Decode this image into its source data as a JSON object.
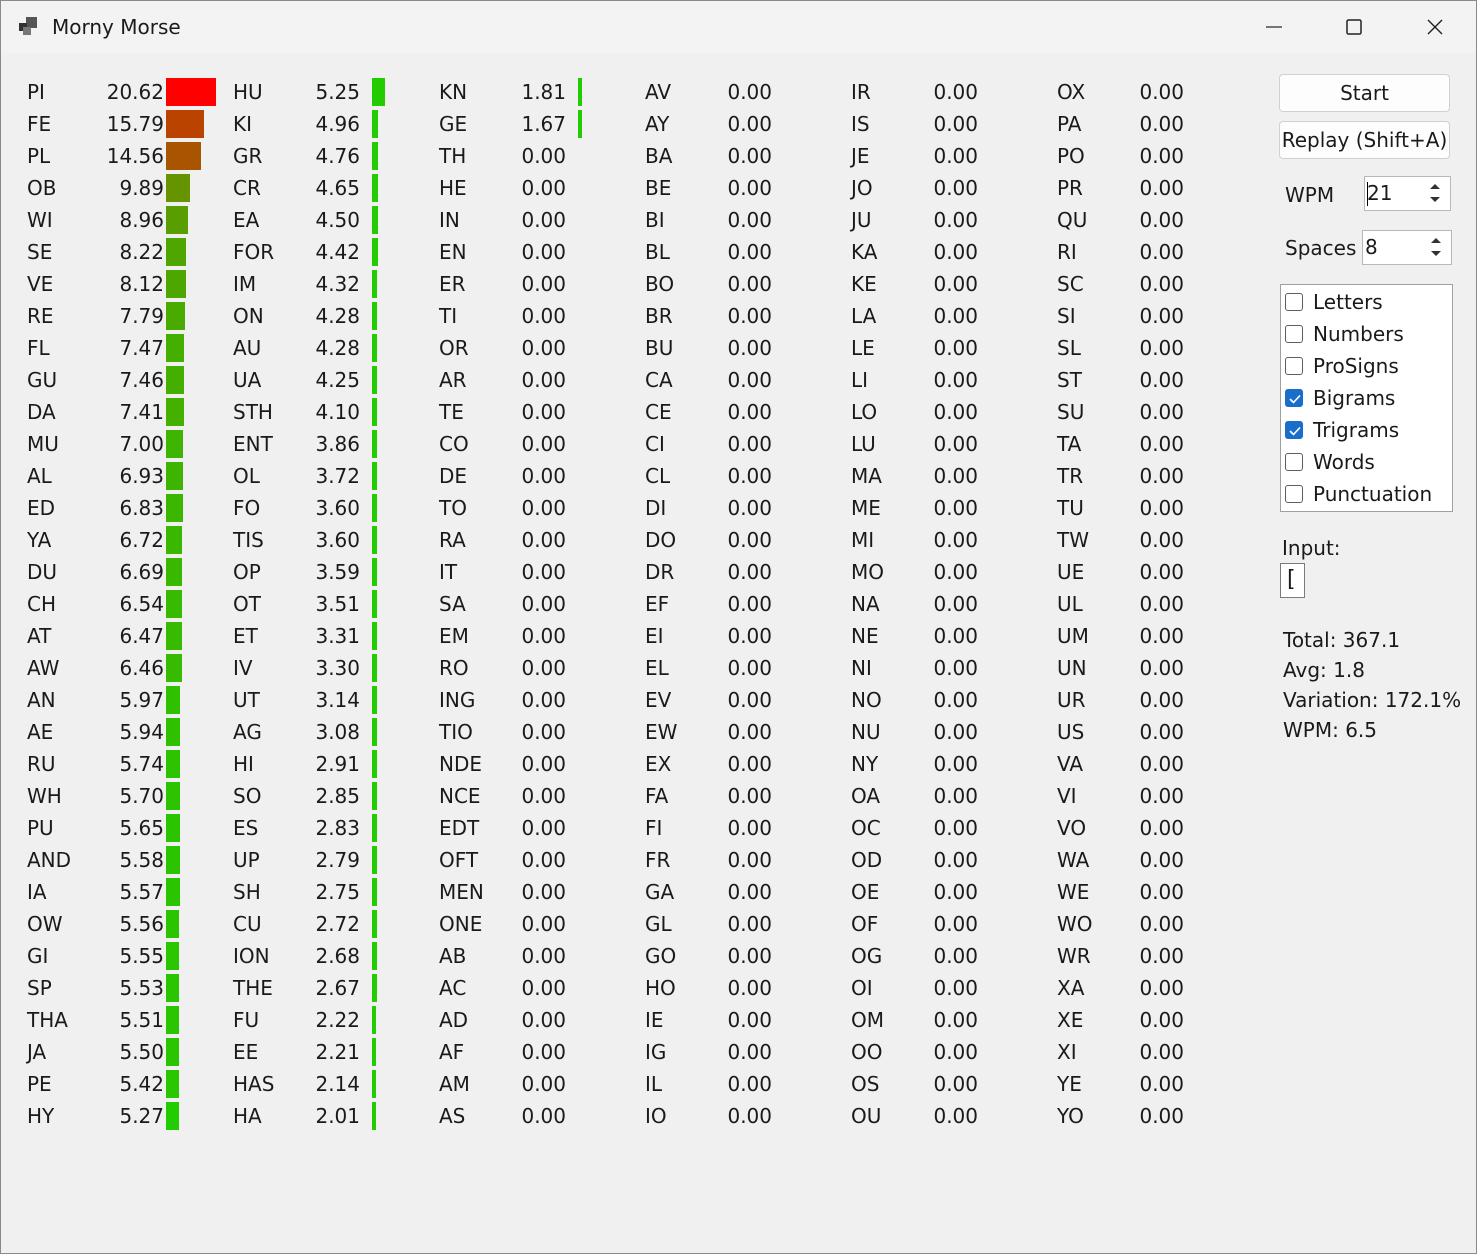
{
  "window": {
    "title": "Morny Morse"
  },
  "controls": {
    "start_label": "Start",
    "replay_label": "Replay (Shift+A)",
    "wpm_label": "WPM",
    "wpm_value": "21",
    "spaces_label": "Spaces",
    "spaces_value": "8",
    "checkboxes": [
      {
        "label": "Letters",
        "checked": false
      },
      {
        "label": "Numbers",
        "checked": false
      },
      {
        "label": "ProSigns",
        "checked": false
      },
      {
        "label": "Bigrams",
        "checked": true
      },
      {
        "label": "Trigrams",
        "checked": true
      },
      {
        "label": "Words",
        "checked": false
      },
      {
        "label": "Punctuation",
        "checked": false
      }
    ],
    "input_label": "Input:",
    "input_value": "["
  },
  "stats": {
    "total": "Total: 367.1",
    "avg": "Avg: 1.8",
    "variation": "Variation: 172.1%",
    "wpm": "WPM: 6.5"
  },
  "colors": {
    "bar_green": "#22cc00",
    "bar_red": "#ff0000"
  },
  "columns": [
    [
      [
        "PI",
        "20.62"
      ],
      [
        "FE",
        "15.79"
      ],
      [
        "PL",
        "14.56"
      ],
      [
        "OB",
        "9.89"
      ],
      [
        "WI",
        "8.96"
      ],
      [
        "SE",
        "8.22"
      ],
      [
        "VE",
        "8.12"
      ],
      [
        "RE",
        "7.79"
      ],
      [
        "FL",
        "7.47"
      ],
      [
        "GU",
        "7.46"
      ],
      [
        "DA",
        "7.41"
      ],
      [
        "MU",
        "7.00"
      ],
      [
        "AL",
        "6.93"
      ],
      [
        "ED",
        "6.83"
      ],
      [
        "YA",
        "6.72"
      ],
      [
        "DU",
        "6.69"
      ],
      [
        "CH",
        "6.54"
      ],
      [
        "AT",
        "6.47"
      ],
      [
        "AW",
        "6.46"
      ],
      [
        "AN",
        "5.97"
      ],
      [
        "AE",
        "5.94"
      ],
      [
        "RU",
        "5.74"
      ],
      [
        "WH",
        "5.70"
      ],
      [
        "PU",
        "5.65"
      ],
      [
        "AND",
        "5.58"
      ],
      [
        "IA",
        "5.57"
      ],
      [
        "OW",
        "5.56"
      ],
      [
        "GI",
        "5.55"
      ],
      [
        "SP",
        "5.53"
      ],
      [
        "THA",
        "5.51"
      ],
      [
        "JA",
        "5.50"
      ],
      [
        "PE",
        "5.42"
      ],
      [
        "HY",
        "5.27"
      ]
    ],
    [
      [
        "HU",
        "5.25"
      ],
      [
        "KI",
        "4.96"
      ],
      [
        "GR",
        "4.76"
      ],
      [
        "CR",
        "4.65"
      ],
      [
        "EA",
        "4.50"
      ],
      [
        "FOR",
        "4.42"
      ],
      [
        "IM",
        "4.32"
      ],
      [
        "ON",
        "4.28"
      ],
      [
        "AU",
        "4.28"
      ],
      [
        "UA",
        "4.25"
      ],
      [
        "STH",
        "4.10"
      ],
      [
        "ENT",
        "3.86"
      ],
      [
        "OL",
        "3.72"
      ],
      [
        "FO",
        "3.60"
      ],
      [
        "TIS",
        "3.60"
      ],
      [
        "OP",
        "3.59"
      ],
      [
        "OT",
        "3.51"
      ],
      [
        "ET",
        "3.31"
      ],
      [
        "IV",
        "3.30"
      ],
      [
        "UT",
        "3.14"
      ],
      [
        "AG",
        "3.08"
      ],
      [
        "HI",
        "2.91"
      ],
      [
        "SO",
        "2.85"
      ],
      [
        "ES",
        "2.83"
      ],
      [
        "UP",
        "2.79"
      ],
      [
        "SH",
        "2.75"
      ],
      [
        "CU",
        "2.72"
      ],
      [
        "ION",
        "2.68"
      ],
      [
        "THE",
        "2.67"
      ],
      [
        "FU",
        "2.22"
      ],
      [
        "EE",
        "2.21"
      ],
      [
        "HAS",
        "2.14"
      ],
      [
        "HA",
        "2.01"
      ]
    ],
    [
      [
        "KN",
        "1.81"
      ],
      [
        "GE",
        "1.67"
      ],
      [
        "TH",
        "0.00"
      ],
      [
        "HE",
        "0.00"
      ],
      [
        "IN",
        "0.00"
      ],
      [
        "EN",
        "0.00"
      ],
      [
        "ER",
        "0.00"
      ],
      [
        "TI",
        "0.00"
      ],
      [
        "OR",
        "0.00"
      ],
      [
        "AR",
        "0.00"
      ],
      [
        "TE",
        "0.00"
      ],
      [
        "CO",
        "0.00"
      ],
      [
        "DE",
        "0.00"
      ],
      [
        "TO",
        "0.00"
      ],
      [
        "RA",
        "0.00"
      ],
      [
        "IT",
        "0.00"
      ],
      [
        "SA",
        "0.00"
      ],
      [
        "EM",
        "0.00"
      ],
      [
        "RO",
        "0.00"
      ],
      [
        "ING",
        "0.00"
      ],
      [
        "TIO",
        "0.00"
      ],
      [
        "NDE",
        "0.00"
      ],
      [
        "NCE",
        "0.00"
      ],
      [
        "EDT",
        "0.00"
      ],
      [
        "OFT",
        "0.00"
      ],
      [
        "MEN",
        "0.00"
      ],
      [
        "ONE",
        "0.00"
      ],
      [
        "AB",
        "0.00"
      ],
      [
        "AC",
        "0.00"
      ],
      [
        "AD",
        "0.00"
      ],
      [
        "AF",
        "0.00"
      ],
      [
        "AM",
        "0.00"
      ],
      [
        "AS",
        "0.00"
      ]
    ],
    [
      [
        "AV",
        "0.00"
      ],
      [
        "AY",
        "0.00"
      ],
      [
        "BA",
        "0.00"
      ],
      [
        "BE",
        "0.00"
      ],
      [
        "BI",
        "0.00"
      ],
      [
        "BL",
        "0.00"
      ],
      [
        "BO",
        "0.00"
      ],
      [
        "BR",
        "0.00"
      ],
      [
        "BU",
        "0.00"
      ],
      [
        "CA",
        "0.00"
      ],
      [
        "CE",
        "0.00"
      ],
      [
        "CI",
        "0.00"
      ],
      [
        "CL",
        "0.00"
      ],
      [
        "DI",
        "0.00"
      ],
      [
        "DO",
        "0.00"
      ],
      [
        "DR",
        "0.00"
      ],
      [
        "EF",
        "0.00"
      ],
      [
        "EI",
        "0.00"
      ],
      [
        "EL",
        "0.00"
      ],
      [
        "EV",
        "0.00"
      ],
      [
        "EW",
        "0.00"
      ],
      [
        "EX",
        "0.00"
      ],
      [
        "FA",
        "0.00"
      ],
      [
        "FI",
        "0.00"
      ],
      [
        "FR",
        "0.00"
      ],
      [
        "GA",
        "0.00"
      ],
      [
        "GL",
        "0.00"
      ],
      [
        "GO",
        "0.00"
      ],
      [
        "HO",
        "0.00"
      ],
      [
        "IE",
        "0.00"
      ],
      [
        "IG",
        "0.00"
      ],
      [
        "IL",
        "0.00"
      ],
      [
        "IO",
        "0.00"
      ]
    ],
    [
      [
        "IR",
        "0.00"
      ],
      [
        "IS",
        "0.00"
      ],
      [
        "JE",
        "0.00"
      ],
      [
        "JO",
        "0.00"
      ],
      [
        "JU",
        "0.00"
      ],
      [
        "KA",
        "0.00"
      ],
      [
        "KE",
        "0.00"
      ],
      [
        "LA",
        "0.00"
      ],
      [
        "LE",
        "0.00"
      ],
      [
        "LI",
        "0.00"
      ],
      [
        "LO",
        "0.00"
      ],
      [
        "LU",
        "0.00"
      ],
      [
        "MA",
        "0.00"
      ],
      [
        "ME",
        "0.00"
      ],
      [
        "MI",
        "0.00"
      ],
      [
        "MO",
        "0.00"
      ],
      [
        "NA",
        "0.00"
      ],
      [
        "NE",
        "0.00"
      ],
      [
        "NI",
        "0.00"
      ],
      [
        "NO",
        "0.00"
      ],
      [
        "NU",
        "0.00"
      ],
      [
        "NY",
        "0.00"
      ],
      [
        "OA",
        "0.00"
      ],
      [
        "OC",
        "0.00"
      ],
      [
        "OD",
        "0.00"
      ],
      [
        "OE",
        "0.00"
      ],
      [
        "OF",
        "0.00"
      ],
      [
        "OG",
        "0.00"
      ],
      [
        "OI",
        "0.00"
      ],
      [
        "OM",
        "0.00"
      ],
      [
        "OO",
        "0.00"
      ],
      [
        "OS",
        "0.00"
      ],
      [
        "OU",
        "0.00"
      ]
    ],
    [
      [
        "OX",
        "0.00"
      ],
      [
        "PA",
        "0.00"
      ],
      [
        "PO",
        "0.00"
      ],
      [
        "PR",
        "0.00"
      ],
      [
        "QU",
        "0.00"
      ],
      [
        "RI",
        "0.00"
      ],
      [
        "SC",
        "0.00"
      ],
      [
        "SI",
        "0.00"
      ],
      [
        "SL",
        "0.00"
      ],
      [
        "ST",
        "0.00"
      ],
      [
        "SU",
        "0.00"
      ],
      [
        "TA",
        "0.00"
      ],
      [
        "TR",
        "0.00"
      ],
      [
        "TU",
        "0.00"
      ],
      [
        "TW",
        "0.00"
      ],
      [
        "UE",
        "0.00"
      ],
      [
        "UL",
        "0.00"
      ],
      [
        "UM",
        "0.00"
      ],
      [
        "UN",
        "0.00"
      ],
      [
        "UR",
        "0.00"
      ],
      [
        "US",
        "0.00"
      ],
      [
        "VA",
        "0.00"
      ],
      [
        "VI",
        "0.00"
      ],
      [
        "VO",
        "0.00"
      ],
      [
        "WA",
        "0.00"
      ],
      [
        "WE",
        "0.00"
      ],
      [
        "WO",
        "0.00"
      ],
      [
        "WR",
        "0.00"
      ],
      [
        "XA",
        "0.00"
      ],
      [
        "XE",
        "0.00"
      ],
      [
        "XI",
        "0.00"
      ],
      [
        "YE",
        "0.00"
      ],
      [
        "YO",
        "0.00"
      ]
    ]
  ]
}
